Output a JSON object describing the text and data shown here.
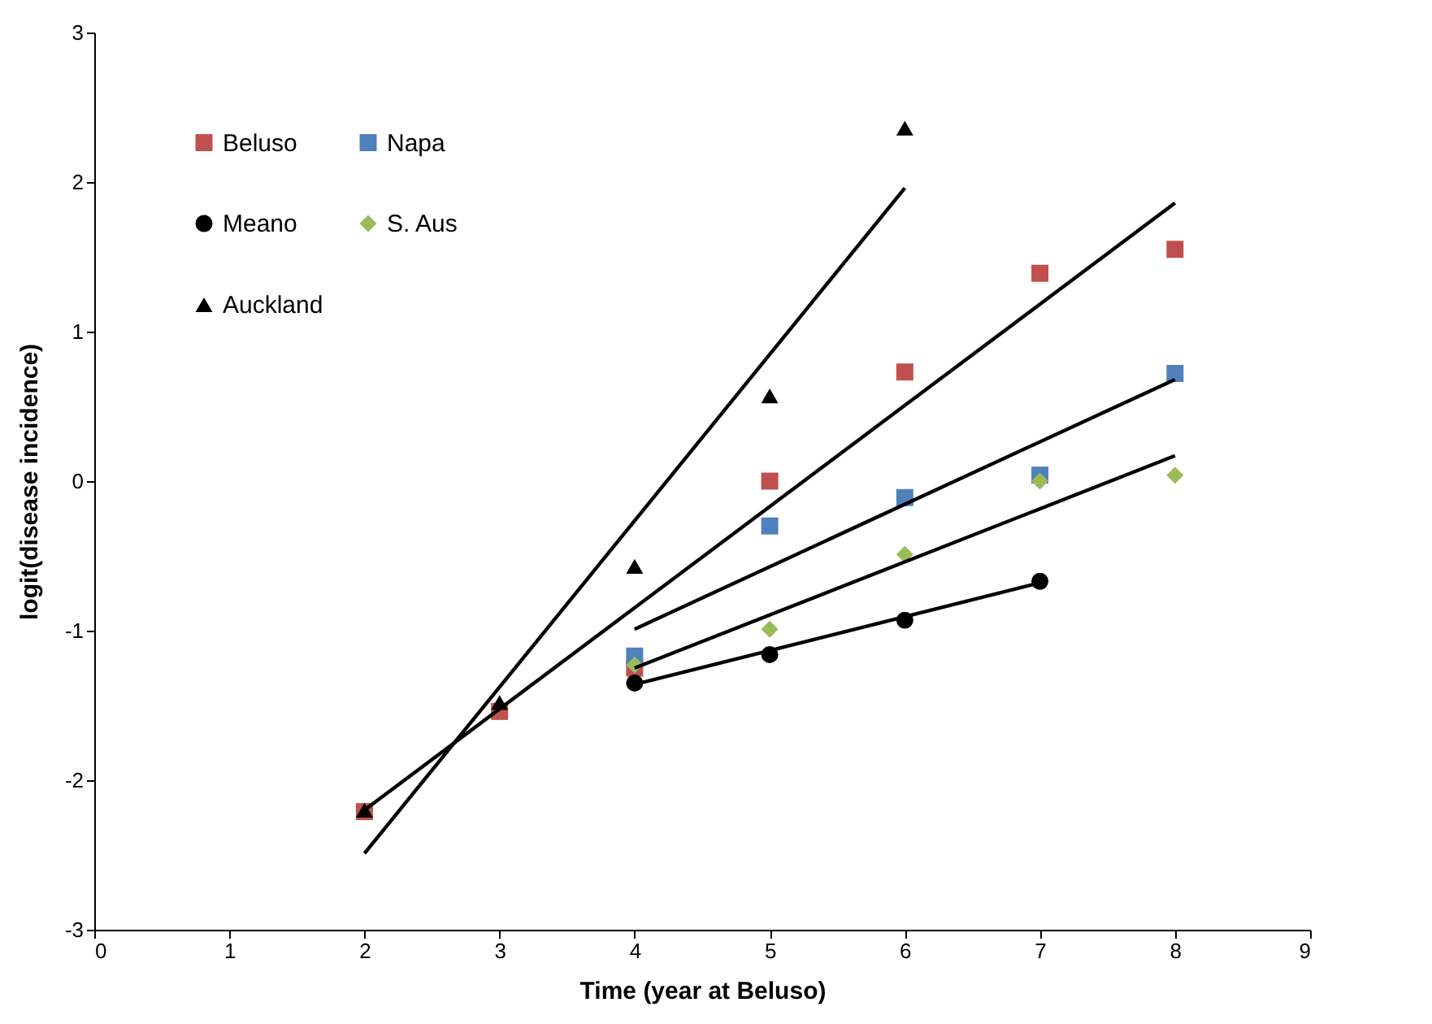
{
  "chart_data": {
    "type": "scatter",
    "xlabel": "Time (year at Beluso)",
    "ylabel": "logit(disease incidence)",
    "x": [
      2,
      3,
      4,
      5,
      6,
      7,
      8
    ],
    "series": [
      {
        "name": "Beluso",
        "color": "#c0504d",
        "marker": "square",
        "values": [
          -2.21,
          -1.54,
          -1.25,
          0.0,
          0.73,
          1.39,
          1.55
        ]
      },
      {
        "name": "Meano",
        "color": "#000000",
        "marker": "circle",
        "values": [
          null,
          null,
          -1.35,
          -1.16,
          -0.93,
          -0.67,
          null
        ]
      },
      {
        "name": "Auckland",
        "color": "#000000",
        "marker": "triangle",
        "values": [
          -2.2,
          -1.48,
          -0.57,
          0.57,
          2.36,
          null,
          null
        ]
      },
      {
        "name": "Napa",
        "color": "#4f81bd",
        "marker": "square",
        "values": [
          null,
          null,
          -1.17,
          -0.3,
          -0.11,
          0.04,
          0.72
        ]
      },
      {
        "name": "S. Aus",
        "color": "#9bbb59",
        "marker": "diamond",
        "values": [
          null,
          null,
          -1.23,
          -0.99,
          -0.49,
          0.0,
          0.04
        ]
      },
      {
        "type": "line",
        "color": "#000000",
        "x": [
          2,
          6
        ],
        "values": [
          -2.49,
          1.96
        ]
      },
      {
        "type": "line",
        "color": "#000000",
        "x": [
          2,
          8
        ],
        "values": [
          -2.2,
          1.86
        ]
      },
      {
        "type": "line",
        "color": "#000000",
        "x": [
          4,
          8
        ],
        "values": [
          -0.99,
          0.68
        ]
      },
      {
        "type": "line",
        "color": "#000000",
        "x": [
          4,
          8
        ],
        "values": [
          -1.25,
          0.17
        ]
      },
      {
        "type": "line",
        "color": "#000000",
        "x": [
          4,
          7
        ],
        "values": [
          -1.36,
          -0.68
        ]
      }
    ],
    "xlim": [
      0,
      9
    ],
    "xticks": [
      0,
      1,
      2,
      3,
      4,
      5,
      6,
      7,
      8,
      9
    ],
    "ylim": [
      -3,
      3
    ],
    "yticks": [
      -3,
      -2,
      -1,
      0,
      1,
      2,
      3
    ],
    "grid": false,
    "legend": "top left"
  }
}
